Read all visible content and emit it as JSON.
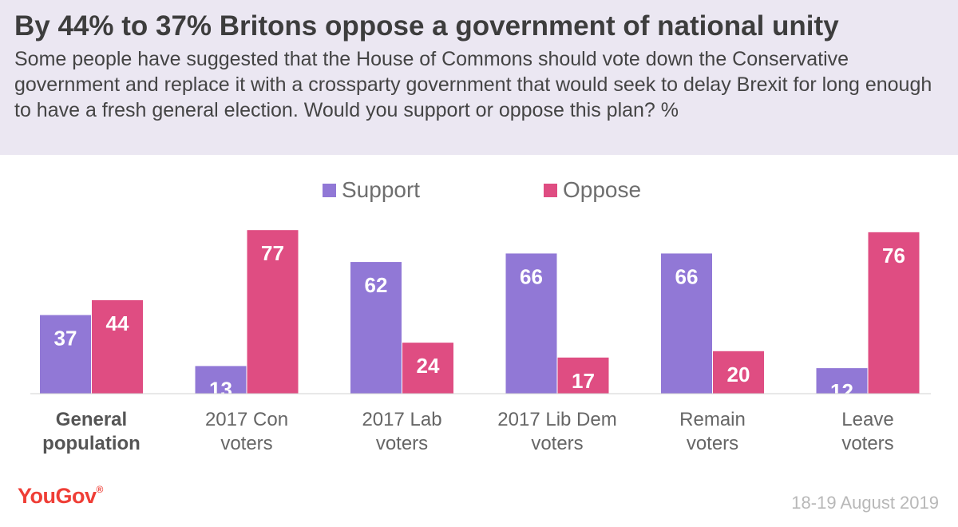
{
  "title": "By 44% to 37% Britons oppose a government of national unity",
  "subtitle": "Some people have suggested that the House of Commons should vote down the Conservative government and replace it with a crossparty government that would seek to delay Brexit for long enough to have a fresh general election. Would you support or oppose this plan? %",
  "source": {
    "logo": "YouGov",
    "date": "18-19 August 2019"
  },
  "colors": {
    "support": "#9178d6",
    "oppose": "#df4d82",
    "header_bg": "#ebe7f2"
  },
  "chart_data": {
    "type": "bar",
    "categories": [
      [
        "General",
        "population"
      ],
      [
        "2017 Con",
        "voters"
      ],
      [
        "2017 Lab",
        "voters"
      ],
      [
        "2017 Lib Dem",
        "voters"
      ],
      [
        "Remain",
        "voters"
      ],
      [
        "Leave",
        "voters"
      ]
    ],
    "series": [
      {
        "name": "Support",
        "values": [
          37,
          13,
          62,
          66,
          66,
          12
        ]
      },
      {
        "name": "Oppose",
        "values": [
          44,
          77,
          24,
          17,
          20,
          76
        ]
      }
    ],
    "legend_position": "top-center",
    "bold_first_category": true,
    "grid": false,
    "ylim": [
      0,
      80
    ]
  }
}
